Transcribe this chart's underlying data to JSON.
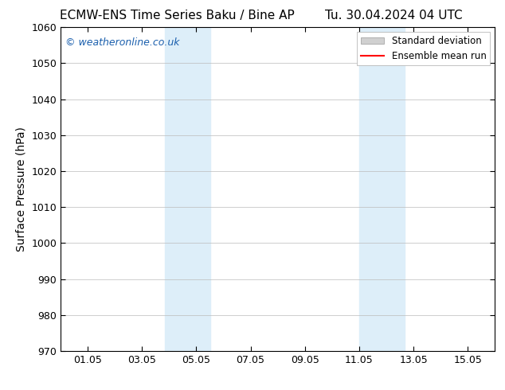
{
  "title_left": "ECMW-ENS Time Series Baku / Bine AP",
  "title_right": "Tu. 30.04.2024 04 UTC",
  "ylabel": "Surface Pressure (hPa)",
  "ylim": [
    970,
    1060
  ],
  "yticks": [
    970,
    980,
    990,
    1000,
    1010,
    1020,
    1030,
    1040,
    1050,
    1060
  ],
  "xtick_labels": [
    "01.05",
    "03.05",
    "05.05",
    "07.05",
    "09.05",
    "11.05",
    "13.05",
    "15.05"
  ],
  "xtick_positions": [
    1,
    3,
    5,
    7,
    9,
    11,
    13,
    15
  ],
  "xlim": [
    0,
    16
  ],
  "shaded_bands": [
    {
      "x_start": 3.83,
      "x_end": 5.5
    },
    {
      "x_start": 11.0,
      "x_end": 12.67
    }
  ],
  "shade_color": "#ddeef9",
  "watermark_text": "© weatheronline.co.uk",
  "watermark_color": "#1a5fad",
  "legend_std_dev_color": "#d0d0d0",
  "legend_mean_run_color": "#ff0000",
  "background_color": "#ffffff",
  "plot_bg_color": "#ffffff",
  "title_fontsize": 11,
  "axis_label_fontsize": 10,
  "tick_fontsize": 9,
  "watermark_fontsize": 9
}
